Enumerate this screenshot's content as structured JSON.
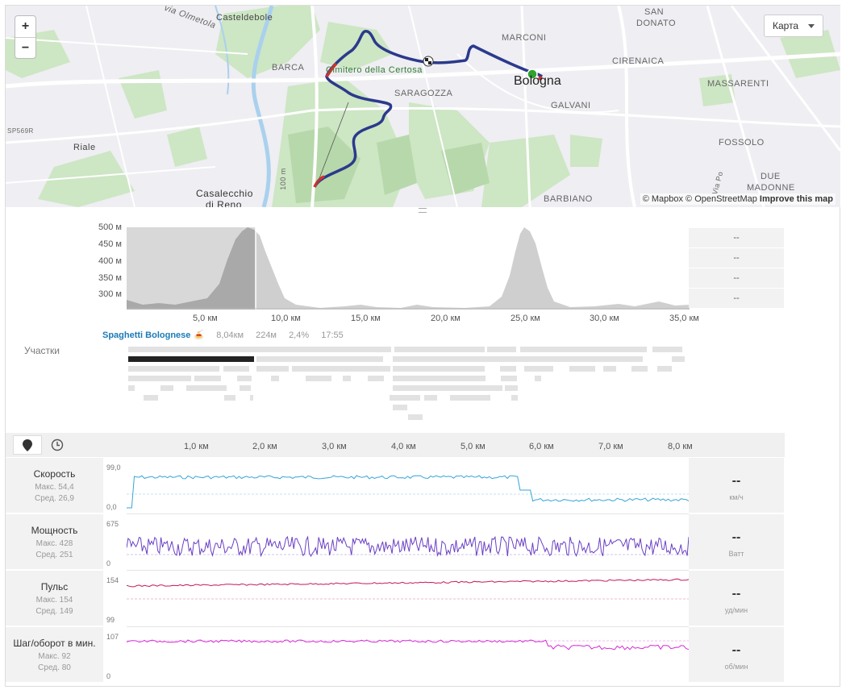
{
  "map": {
    "zoom_in": "+",
    "zoom_out": "−",
    "type_selector": "Карта",
    "attribution_prefix": "© Mapbox © OpenStreetMap",
    "attribution_link": "Improve this map",
    "labels": {
      "casteldebole": "Casteldebole",
      "san_donato": "SAN",
      "san_donato2": "DONATO",
      "marconi": "MARCONI",
      "cirenaica": "CIRENAICA",
      "barca": "BARCA",
      "certosa": "Cimitero della Certosa",
      "bologna": "Bologna",
      "massarenti": "MASSARENTI",
      "saragozza": "SARAGOZZA",
      "galvani": "GALVANI",
      "sp": "SP569R",
      "riale": "Riale",
      "fossolo": "FOSSOLO",
      "due_madonne": "DUE",
      "due_madonne2": "MADONNE",
      "casalecchio": "Casalecchio",
      "casalecchio2": "di Reno",
      "barbiano": "BARBIANO",
      "olmetola": "via Olmetola",
      "road100": "100 m",
      "via_po": "Via Po"
    }
  },
  "elevation": {
    "y_ticks": [
      "500 м",
      "450 м",
      "400 м",
      "350 м",
      "300 м"
    ],
    "x_ticks": [
      "5,0 км",
      "10,0 км",
      "15,0 км",
      "20,0 км",
      "25,0 км",
      "30,0 км",
      "35,0 км"
    ],
    "side_values": [
      "--",
      "--",
      "--",
      "--"
    ]
  },
  "segments": {
    "label": "Участки",
    "name": "Spaghetti Bolognese 🍝",
    "distance": "8,04км",
    "elevation": "224м",
    "grade": "2,4%",
    "time": "17:55"
  },
  "streams": {
    "x_ticks": [
      "1,0 км",
      "2,0 км",
      "3,0 км",
      "4,0 км",
      "5,0 км",
      "6,0 км",
      "7,0 км",
      "8,0 км"
    ],
    "rows": [
      {
        "title": "Скорость",
        "max": "Макс. 54,4",
        "avg": "Сред. 26,9",
        "ymax": "99,0",
        "ymin": "0,0",
        "value": "--",
        "unit": "км/ч",
        "color": "#36a4d8"
      },
      {
        "title": "Мощность",
        "max": "Макс. 428",
        "avg": "Сред. 251",
        "ymax": "675",
        "ymin": "0",
        "value": "--",
        "unit": "Ватт",
        "color": "#6a3fc4"
      },
      {
        "title": "Пульс",
        "max": "Макс. 154",
        "avg": "Сред. 149",
        "ymax": "154",
        "ymin": "99",
        "value": "--",
        "unit": "уд/мин",
        "color": "#c2185b"
      },
      {
        "title": "Шаг/оборот в мин.",
        "max": "Макс. 92",
        "avg": "Сред. 80",
        "ymax": "107",
        "ymin": "0",
        "value": "--",
        "unit": "об/мин",
        "color": "#d62bd6"
      }
    ]
  }
}
